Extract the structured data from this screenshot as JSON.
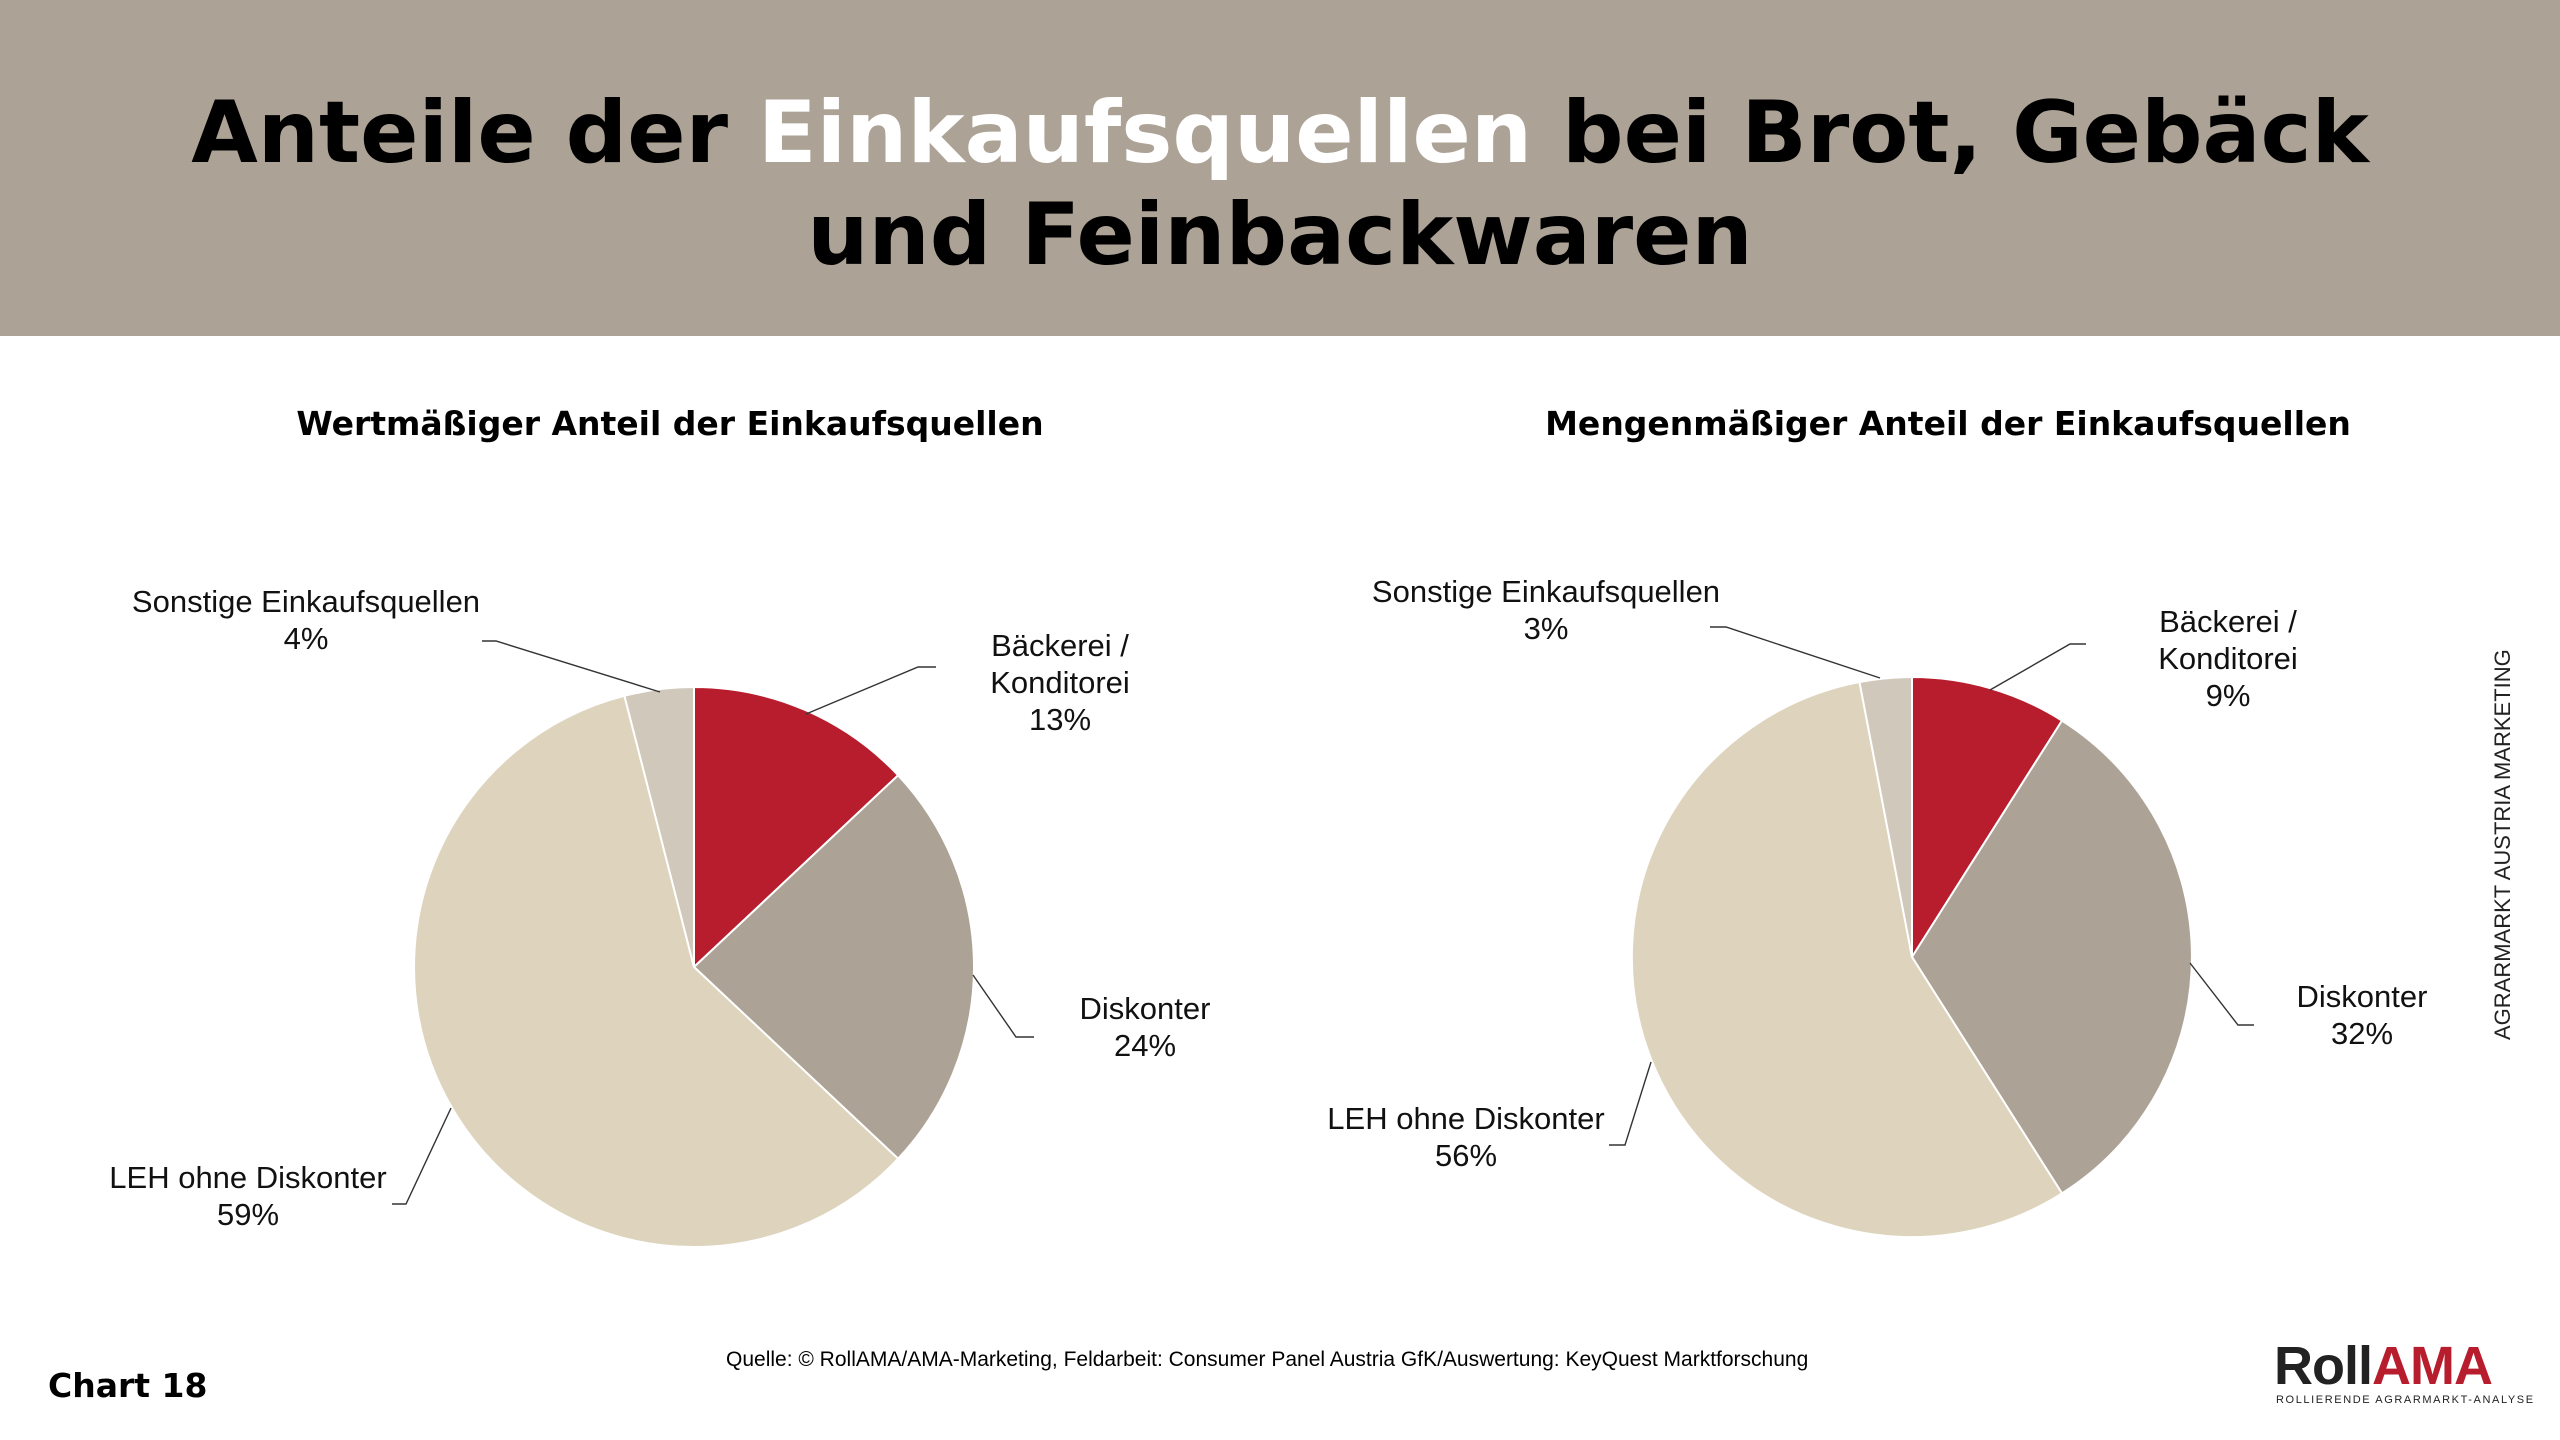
{
  "header": {
    "title_pre": "Anteile der ",
    "title_highlight": "Einkaufsquellen",
    "title_post": " bei Brot, Gebäck",
    "title_line2": "und Feinbackwaren"
  },
  "footer": {
    "source": "Quelle: © RollAMA/AMA-Marketing, Feldarbeit: Consumer Panel Austria GfK/Auswertung: KeyQuest Marktforschung",
    "chart_number": "Chart 18",
    "side_text": "AGRARMARKT AUSTRIA MARKETING",
    "logo_part1": "Roll",
    "logo_part2": "AMA",
    "logo_subtitle": "ROLLIERENDE AGRARMARKT-ANALYSE"
  },
  "colors": {
    "header_bg": "#aca295",
    "baeckerei": "#b81d2e",
    "diskonter": "#aca295",
    "leh": "#ded3bc",
    "sonstige": "#d0c8bb"
  },
  "chart_data": [
    {
      "type": "pie",
      "title": "Wertmäßiger Anteil der Einkaufsquellen",
      "slices": [
        {
          "label_lines": [
            "Bäckerei /",
            "Konditorei"
          ],
          "value": 13,
          "value_label": "13%",
          "color": "#b81d2e"
        },
        {
          "label_lines": [
            "Diskonter"
          ],
          "value": 24,
          "value_label": "24%",
          "color": "#aca295"
        },
        {
          "label_lines": [
            "LEH ohne Diskonter"
          ],
          "value": 59,
          "value_label": "59%",
          "color": "#ded3bc"
        },
        {
          "label_lines": [
            "Sonstige Einkaufsquellen"
          ],
          "value": 4,
          "value_label": "4%",
          "color": "#d0c8bb"
        }
      ]
    },
    {
      "type": "pie",
      "title": "Mengenmäßiger Anteil der Einkaufsquellen",
      "slices": [
        {
          "label_lines": [
            "Bäckerei /",
            "Konditorei"
          ],
          "value": 9,
          "value_label": "9%",
          "color": "#b81d2e"
        },
        {
          "label_lines": [
            "Diskonter"
          ],
          "value": 32,
          "value_label": "32%",
          "color": "#aca295"
        },
        {
          "label_lines": [
            "LEH ohne Diskonter"
          ],
          "value": 56,
          "value_label": "56%",
          "color": "#ded3bc"
        },
        {
          "label_lines": [
            "Sonstige Einkaufsquellen"
          ],
          "value": 3,
          "value_label": "3%",
          "color": "#d0c8bb"
        }
      ]
    }
  ]
}
